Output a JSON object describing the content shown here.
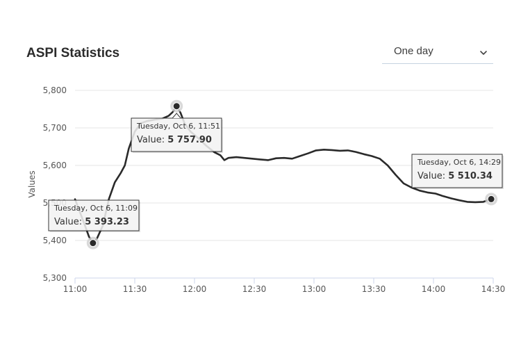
{
  "header": {
    "title": "ASPI Statistics",
    "range_select": {
      "value": "One day",
      "icon": "chevron-down-icon"
    }
  },
  "colors": {
    "line": "#2a2a2a",
    "grid": "#e6e6e6",
    "axis": "#ccd6eb",
    "text": "#555555",
    "select_underline": "#c6d3e0"
  },
  "chart_data": {
    "type": "line",
    "title": "",
    "xlabel": "",
    "ylabel": "Values",
    "ylim": [
      5300,
      5800
    ],
    "yticks": [
      "5,300",
      "5,400",
      "5,500",
      "5,600",
      "5,700",
      "5,800"
    ],
    "xlim": [
      "11:00",
      "14:30"
    ],
    "xticks": [
      "11:00",
      "11:30",
      "12:00",
      "12:30",
      "13:00",
      "13:30",
      "14:00",
      "14:30"
    ],
    "grid": true,
    "series": [
      {
        "values": [
          [
            "11:00",
            5510
          ],
          [
            "11:03",
            5468
          ],
          [
            "11:05",
            5440
          ],
          [
            "11:07",
            5410
          ],
          [
            "11:09",
            5393.23
          ],
          [
            "11:11",
            5405
          ],
          [
            "11:14",
            5440
          ],
          [
            "11:17",
            5510
          ],
          [
            "11:20",
            5555
          ],
          [
            "11:23",
            5580
          ],
          [
            "11:25",
            5600
          ],
          [
            "11:27",
            5645
          ],
          [
            "11:30",
            5690
          ],
          [
            "11:33",
            5712
          ],
          [
            "11:36",
            5718
          ],
          [
            "11:40",
            5722
          ],
          [
            "11:44",
            5725
          ],
          [
            "11:47",
            5732
          ],
          [
            "11:49",
            5742
          ],
          [
            "11:51",
            5757.9
          ],
          [
            "11:53",
            5740
          ],
          [
            "11:55",
            5712
          ],
          [
            "11:58",
            5690
          ],
          [
            "12:02",
            5672
          ],
          [
            "12:06",
            5652
          ],
          [
            "12:10",
            5635
          ],
          [
            "12:13",
            5627
          ],
          [
            "12:15",
            5614
          ],
          [
            "12:17",
            5620
          ],
          [
            "12:21",
            5622
          ],
          [
            "12:25",
            5620
          ],
          [
            "12:29",
            5618
          ],
          [
            "12:33",
            5616
          ],
          [
            "12:37",
            5614
          ],
          [
            "12:41",
            5619
          ],
          [
            "12:45",
            5620
          ],
          [
            "12:49",
            5618
          ],
          [
            "12:53",
            5625
          ],
          [
            "12:57",
            5632
          ],
          [
            "13:01",
            5640
          ],
          [
            "13:05",
            5642
          ],
          [
            "13:09",
            5641
          ],
          [
            "13:13",
            5639
          ],
          [
            "13:17",
            5640
          ],
          [
            "13:21",
            5636
          ],
          [
            "13:25",
            5630
          ],
          [
            "13:29",
            5625
          ],
          [
            "13:33",
            5618
          ],
          [
            "13:37",
            5600
          ],
          [
            "13:41",
            5575
          ],
          [
            "13:45",
            5552
          ],
          [
            "13:49",
            5541
          ],
          [
            "13:53",
            5533
          ],
          [
            "13:57",
            5528
          ],
          [
            "14:01",
            5525
          ],
          [
            "14:05",
            5518
          ],
          [
            "14:09",
            5512
          ],
          [
            "14:13",
            5507
          ],
          [
            "14:17",
            5503
          ],
          [
            "14:21",
            5502
          ],
          [
            "14:25",
            5503
          ],
          [
            "14:29",
            5510.34
          ]
        ]
      }
    ],
    "markers": [
      {
        "time": "11:09",
        "value": 5393.23
      },
      {
        "time": "11:51",
        "value": 5757.9
      },
      {
        "time": "14:29",
        "value": 5510.34
      }
    ],
    "tooltips": [
      {
        "date": "Tuesday, Oct 6, 11:09",
        "label": "Value:",
        "value": "5 393.23"
      },
      {
        "date": "Tuesday, Oct 6, 11:51",
        "label": "Value:",
        "value": "5 757.90"
      },
      {
        "date": "Tuesday, Oct 6, 14:29",
        "label": "Value:",
        "value": "5 510.34"
      }
    ]
  }
}
